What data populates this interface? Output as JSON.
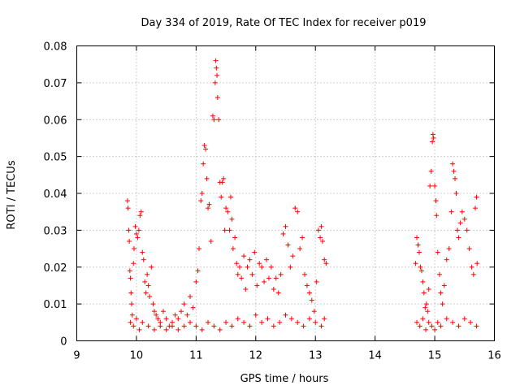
{
  "chart_data": {
    "type": "scatter",
    "title": "Day 334 of 2019, Rate Of TEC Index for receiver p019",
    "xlabel": "GPS time / hours",
    "ylabel": "ROTI / TECUs",
    "xlim": [
      9,
      16
    ],
    "ylim": [
      0,
      0.08
    ],
    "xticks": [
      "9",
      "10",
      "11",
      "12",
      "13",
      "14",
      "15",
      "16"
    ],
    "yticks": [
      "0",
      "0.01",
      "0.02",
      "0.03",
      "0.04",
      "0.05",
      "0.06",
      "0.07",
      "0.08"
    ],
    "grid": true,
    "marker": "+",
    "color": "#ff0000",
    "series": [
      {
        "name": "ROTI",
        "points": [
          [
            9.85,
            0.038
          ],
          [
            9.86,
            0.036
          ],
          [
            9.87,
            0.03
          ],
          [
            9.88,
            0.027
          ],
          [
            9.89,
            0.019
          ],
          [
            9.9,
            0.017
          ],
          [
            9.91,
            0.013
          ],
          [
            9.92,
            0.01
          ],
          [
            9.93,
            0.007
          ],
          [
            9.95,
            0.021
          ],
          [
            9.96,
            0.025
          ],
          [
            9.98,
            0.031
          ],
          [
            10.0,
            0.029
          ],
          [
            10.02,
            0.028
          ],
          [
            10.04,
            0.03
          ],
          [
            10.06,
            0.034
          ],
          [
            10.08,
            0.035
          ],
          [
            10.1,
            0.024
          ],
          [
            10.12,
            0.022
          ],
          [
            10.14,
            0.016
          ],
          [
            10.16,
            0.013
          ],
          [
            10.18,
            0.018
          ],
          [
            10.2,
            0.015
          ],
          [
            10.22,
            0.012
          ],
          [
            10.25,
            0.02
          ],
          [
            10.28,
            0.01
          ],
          [
            10.3,
            0.008
          ],
          [
            10.33,
            0.007
          ],
          [
            10.36,
            0.006
          ],
          [
            10.4,
            0.005
          ],
          [
            10.45,
            0.008
          ],
          [
            10.5,
            0.006
          ],
          [
            10.55,
            0.004
          ],
          [
            10.6,
            0.005
          ],
          [
            10.65,
            0.007
          ],
          [
            10.7,
            0.006
          ],
          [
            10.75,
            0.008
          ],
          [
            10.8,
            0.01
          ],
          [
            10.85,
            0.007
          ],
          [
            10.9,
            0.012
          ],
          [
            10.95,
            0.009
          ],
          [
            11.0,
            0.016
          ],
          [
            11.03,
            0.019
          ],
          [
            11.05,
            0.025
          ],
          [
            11.08,
            0.038
          ],
          [
            11.1,
            0.04
          ],
          [
            11.12,
            0.048
          ],
          [
            11.14,
            0.053
          ],
          [
            11.16,
            0.052
          ],
          [
            11.18,
            0.044
          ],
          [
            11.2,
            0.036
          ],
          [
            11.22,
            0.037
          ],
          [
            11.25,
            0.027
          ],
          [
            11.28,
            0.061
          ],
          [
            11.3,
            0.06
          ],
          [
            11.32,
            0.07
          ],
          [
            11.33,
            0.076
          ],
          [
            11.34,
            0.074
          ],
          [
            11.35,
            0.072
          ],
          [
            11.36,
            0.066
          ],
          [
            11.38,
            0.06
          ],
          [
            11.4,
            0.043
          ],
          [
            11.42,
            0.039
          ],
          [
            11.44,
            0.043
          ],
          [
            11.46,
            0.044
          ],
          [
            11.48,
            0.03
          ],
          [
            11.5,
            0.036
          ],
          [
            11.53,
            0.035
          ],
          [
            11.56,
            0.03
          ],
          [
            11.58,
            0.039
          ],
          [
            11.6,
            0.033
          ],
          [
            11.62,
            0.025
          ],
          [
            11.65,
            0.028
          ],
          [
            11.68,
            0.021
          ],
          [
            11.7,
            0.018
          ],
          [
            11.73,
            0.02
          ],
          [
            11.76,
            0.017
          ],
          [
            11.8,
            0.023
          ],
          [
            11.83,
            0.014
          ],
          [
            11.86,
            0.02
          ],
          [
            11.9,
            0.022
          ],
          [
            11.94,
            0.018
          ],
          [
            11.98,
            0.024
          ],
          [
            12.02,
            0.015
          ],
          [
            12.06,
            0.021
          ],
          [
            12.1,
            0.02
          ],
          [
            12.14,
            0.016
          ],
          [
            12.18,
            0.022
          ],
          [
            12.22,
            0.017
          ],
          [
            12.26,
            0.02
          ],
          [
            12.3,
            0.014
          ],
          [
            12.34,
            0.017
          ],
          [
            12.38,
            0.013
          ],
          [
            12.42,
            0.018
          ],
          [
            12.46,
            0.029
          ],
          [
            12.5,
            0.031
          ],
          [
            12.54,
            0.026
          ],
          [
            12.58,
            0.02
          ],
          [
            12.62,
            0.023
          ],
          [
            12.66,
            0.036
          ],
          [
            12.7,
            0.035
          ],
          [
            12.74,
            0.025
          ],
          [
            12.78,
            0.028
          ],
          [
            12.82,
            0.018
          ],
          [
            12.86,
            0.015
          ],
          [
            12.9,
            0.013
          ],
          [
            12.94,
            0.011
          ],
          [
            12.98,
            0.008
          ],
          [
            13.02,
            0.016
          ],
          [
            13.05,
            0.03
          ],
          [
            13.08,
            0.028
          ],
          [
            13.1,
            0.031
          ],
          [
            13.12,
            0.027
          ],
          [
            13.15,
            0.022
          ],
          [
            13.18,
            0.021
          ],
          [
            9.9,
            0.005
          ],
          [
            9.95,
            0.004
          ],
          [
            10.0,
            0.006
          ],
          [
            10.05,
            0.003
          ],
          [
            10.1,
            0.005
          ],
          [
            10.2,
            0.004
          ],
          [
            10.3,
            0.003
          ],
          [
            10.4,
            0.004
          ],
          [
            10.5,
            0.003
          ],
          [
            10.6,
            0.004
          ],
          [
            10.7,
            0.003
          ],
          [
            10.8,
            0.004
          ],
          [
            10.9,
            0.005
          ],
          [
            11.0,
            0.004
          ],
          [
            11.1,
            0.003
          ],
          [
            11.2,
            0.005
          ],
          [
            11.3,
            0.004
          ],
          [
            11.4,
            0.003
          ],
          [
            11.5,
            0.005
          ],
          [
            11.6,
            0.004
          ],
          [
            11.7,
            0.006
          ],
          [
            11.8,
            0.005
          ],
          [
            11.9,
            0.004
          ],
          [
            12.0,
            0.007
          ],
          [
            12.1,
            0.005
          ],
          [
            12.2,
            0.006
          ],
          [
            12.3,
            0.004
          ],
          [
            12.4,
            0.005
          ],
          [
            12.5,
            0.007
          ],
          [
            12.6,
            0.006
          ],
          [
            12.7,
            0.005
          ],
          [
            12.8,
            0.004
          ],
          [
            12.9,
            0.006
          ],
          [
            13.0,
            0.005
          ],
          [
            13.1,
            0.004
          ],
          [
            13.15,
            0.006
          ],
          [
            14.68,
            0.021
          ],
          [
            14.7,
            0.028
          ],
          [
            14.72,
            0.026
          ],
          [
            14.74,
            0.024
          ],
          [
            14.76,
            0.02
          ],
          [
            14.78,
            0.019
          ],
          [
            14.8,
            0.016
          ],
          [
            14.82,
            0.013
          ],
          [
            14.84,
            0.009
          ],
          [
            14.86,
            0.01
          ],
          [
            14.88,
            0.008
          ],
          [
            14.9,
            0.014
          ],
          [
            14.92,
            0.042
          ],
          [
            14.94,
            0.046
          ],
          [
            14.96,
            0.054
          ],
          [
            14.97,
            0.056
          ],
          [
            14.98,
            0.055
          ],
          [
            15.0,
            0.042
          ],
          [
            15.02,
            0.038
          ],
          [
            15.03,
            0.034
          ],
          [
            15.05,
            0.024
          ],
          [
            15.08,
            0.018
          ],
          [
            15.1,
            0.013
          ],
          [
            15.13,
            0.01
          ],
          [
            15.16,
            0.015
          ],
          [
            15.2,
            0.022
          ],
          [
            15.24,
            0.025
          ],
          [
            15.28,
            0.035
          ],
          [
            15.3,
            0.048
          ],
          [
            15.32,
            0.046
          ],
          [
            15.34,
            0.044
          ],
          [
            15.36,
            0.04
          ],
          [
            15.38,
            0.03
          ],
          [
            15.4,
            0.028
          ],
          [
            15.43,
            0.032
          ],
          [
            15.46,
            0.035
          ],
          [
            15.5,
            0.033
          ],
          [
            15.54,
            0.03
          ],
          [
            15.58,
            0.025
          ],
          [
            15.62,
            0.02
          ],
          [
            15.65,
            0.018
          ],
          [
            15.68,
            0.036
          ],
          [
            15.7,
            0.039
          ],
          [
            15.71,
            0.021
          ],
          [
            14.7,
            0.005
          ],
          [
            14.75,
            0.004
          ],
          [
            14.8,
            0.006
          ],
          [
            14.85,
            0.003
          ],
          [
            14.9,
            0.005
          ],
          [
            14.95,
            0.004
          ],
          [
            15.0,
            0.003
          ],
          [
            15.05,
            0.005
          ],
          [
            15.1,
            0.004
          ],
          [
            15.2,
            0.006
          ],
          [
            15.3,
            0.005
          ],
          [
            15.4,
            0.004
          ],
          [
            15.5,
            0.006
          ],
          [
            15.6,
            0.005
          ],
          [
            15.7,
            0.004
          ]
        ]
      }
    ]
  }
}
